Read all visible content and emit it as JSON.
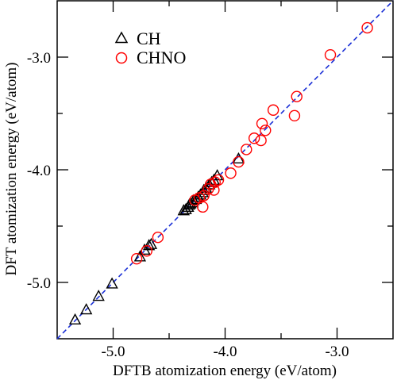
{
  "chart_data": {
    "type": "scatter",
    "xlabel": "DFTB atomization energy (eV/atom)",
    "ylabel": "DFT atomization energy (eV/atom)",
    "xlim": [
      -5.5,
      -2.5
    ],
    "ylim": [
      -5.5,
      -2.5
    ],
    "xticks": [
      -5.0,
      -4.0,
      -3.0
    ],
    "yticks": [
      -5.0,
      -4.0,
      -3.0
    ],
    "xtick_labels": [
      "-5.0",
      "-4.0",
      "-3.0"
    ],
    "ytick_labels": [
      "-5.0",
      "-4.0",
      "-3.0"
    ],
    "legend_position": "top-left",
    "grid": false,
    "reference_line": {
      "style": "dashed",
      "color": "#1a2fd6",
      "slope": 1,
      "intercept": 0
    },
    "series": [
      {
        "name": "CH",
        "marker": "triangle",
        "color": "#000000",
        "points": [
          [
            -5.34,
            -5.33
          ],
          [
            -5.24,
            -5.24
          ],
          [
            -5.13,
            -5.12
          ],
          [
            -5.01,
            -5.01
          ],
          [
            -4.76,
            -4.77
          ],
          [
            -4.72,
            -4.71
          ],
          [
            -4.68,
            -4.67
          ],
          [
            -4.66,
            -4.66
          ],
          [
            -4.37,
            -4.36
          ],
          [
            -4.35,
            -4.35
          ],
          [
            -4.33,
            -4.33
          ],
          [
            -4.32,
            -4.31
          ],
          [
            -4.31,
            -4.3
          ],
          [
            -4.29,
            -4.29
          ],
          [
            -4.28,
            -4.27
          ],
          [
            -4.26,
            -4.26
          ],
          [
            -4.24,
            -4.24
          ],
          [
            -4.22,
            -4.22
          ],
          [
            -4.2,
            -4.2
          ],
          [
            -4.19,
            -4.18
          ],
          [
            -4.17,
            -4.16
          ],
          [
            -4.14,
            -4.13
          ],
          [
            -4.12,
            -4.11
          ],
          [
            -4.1,
            -4.09
          ],
          [
            -4.07,
            -4.05
          ],
          [
            -3.88,
            -3.9
          ]
        ]
      },
      {
        "name": "CHNO",
        "marker": "circle",
        "color": "#ff0000",
        "points": [
          [
            -2.73,
            -2.74
          ],
          [
            -3.06,
            -2.98
          ],
          [
            -3.36,
            -3.35
          ],
          [
            -3.38,
            -3.52
          ],
          [
            -3.57,
            -3.47
          ],
          [
            -3.64,
            -3.65
          ],
          [
            -3.67,
            -3.59
          ],
          [
            -3.68,
            -3.74
          ],
          [
            -3.74,
            -3.72
          ],
          [
            -3.81,
            -3.82
          ],
          [
            -3.88,
            -3.93
          ],
          [
            -3.95,
            -4.03
          ],
          [
            -4.06,
            -4.09
          ],
          [
            -4.09,
            -4.11
          ],
          [
            -4.1,
            -4.18
          ],
          [
            -4.13,
            -4.13
          ],
          [
            -4.15,
            -4.17
          ],
          [
            -4.19,
            -4.23
          ],
          [
            -4.2,
            -4.33
          ],
          [
            -4.23,
            -4.25
          ],
          [
            -4.27,
            -4.27
          ],
          [
            -4.6,
            -4.6
          ],
          [
            -4.7,
            -4.72
          ],
          [
            -4.79,
            -4.79
          ]
        ]
      }
    ]
  }
}
